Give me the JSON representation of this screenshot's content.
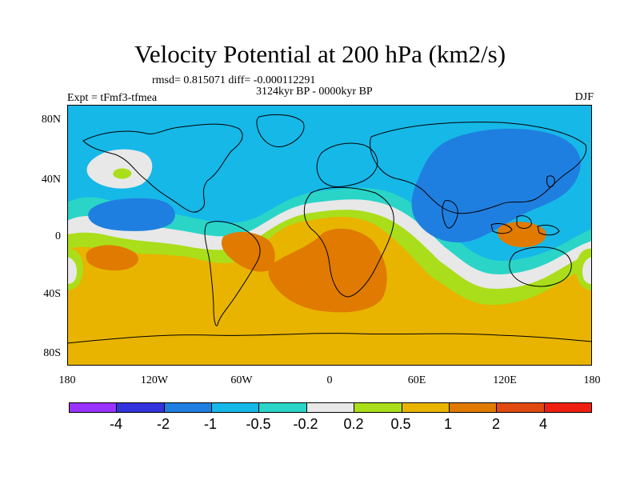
{
  "title": "Velocity Potential at 200 hPa (km2/s)",
  "stats_line": "rmsd= 0.815071 diff= -0.000112291",
  "period_line": "3124kyr BP - 0000kyr BP",
  "experiment_line": "Expt = tFmf3-tfmea",
  "season": "DJF",
  "lat_ticks": [
    "80N",
    "40N",
    "0",
    "40S",
    "80S"
  ],
  "lon_ticks": [
    "180",
    "120W",
    "60W",
    "0",
    "60E",
    "120E",
    "180"
  ],
  "colorbar": {
    "colors": [
      "#9933ff",
      "#3333dd",
      "#1f7fe0",
      "#16b8e8",
      "#2ad5c8",
      "#e8e8e8",
      "#aade1a",
      "#e8b400",
      "#e07a00",
      "#e04a10",
      "#ee2010"
    ],
    "labels": [
      "-4",
      "-2",
      "-1",
      "-0.5",
      "-0.2",
      "0.2",
      "0.5",
      "1",
      "2",
      "4"
    ]
  }
}
